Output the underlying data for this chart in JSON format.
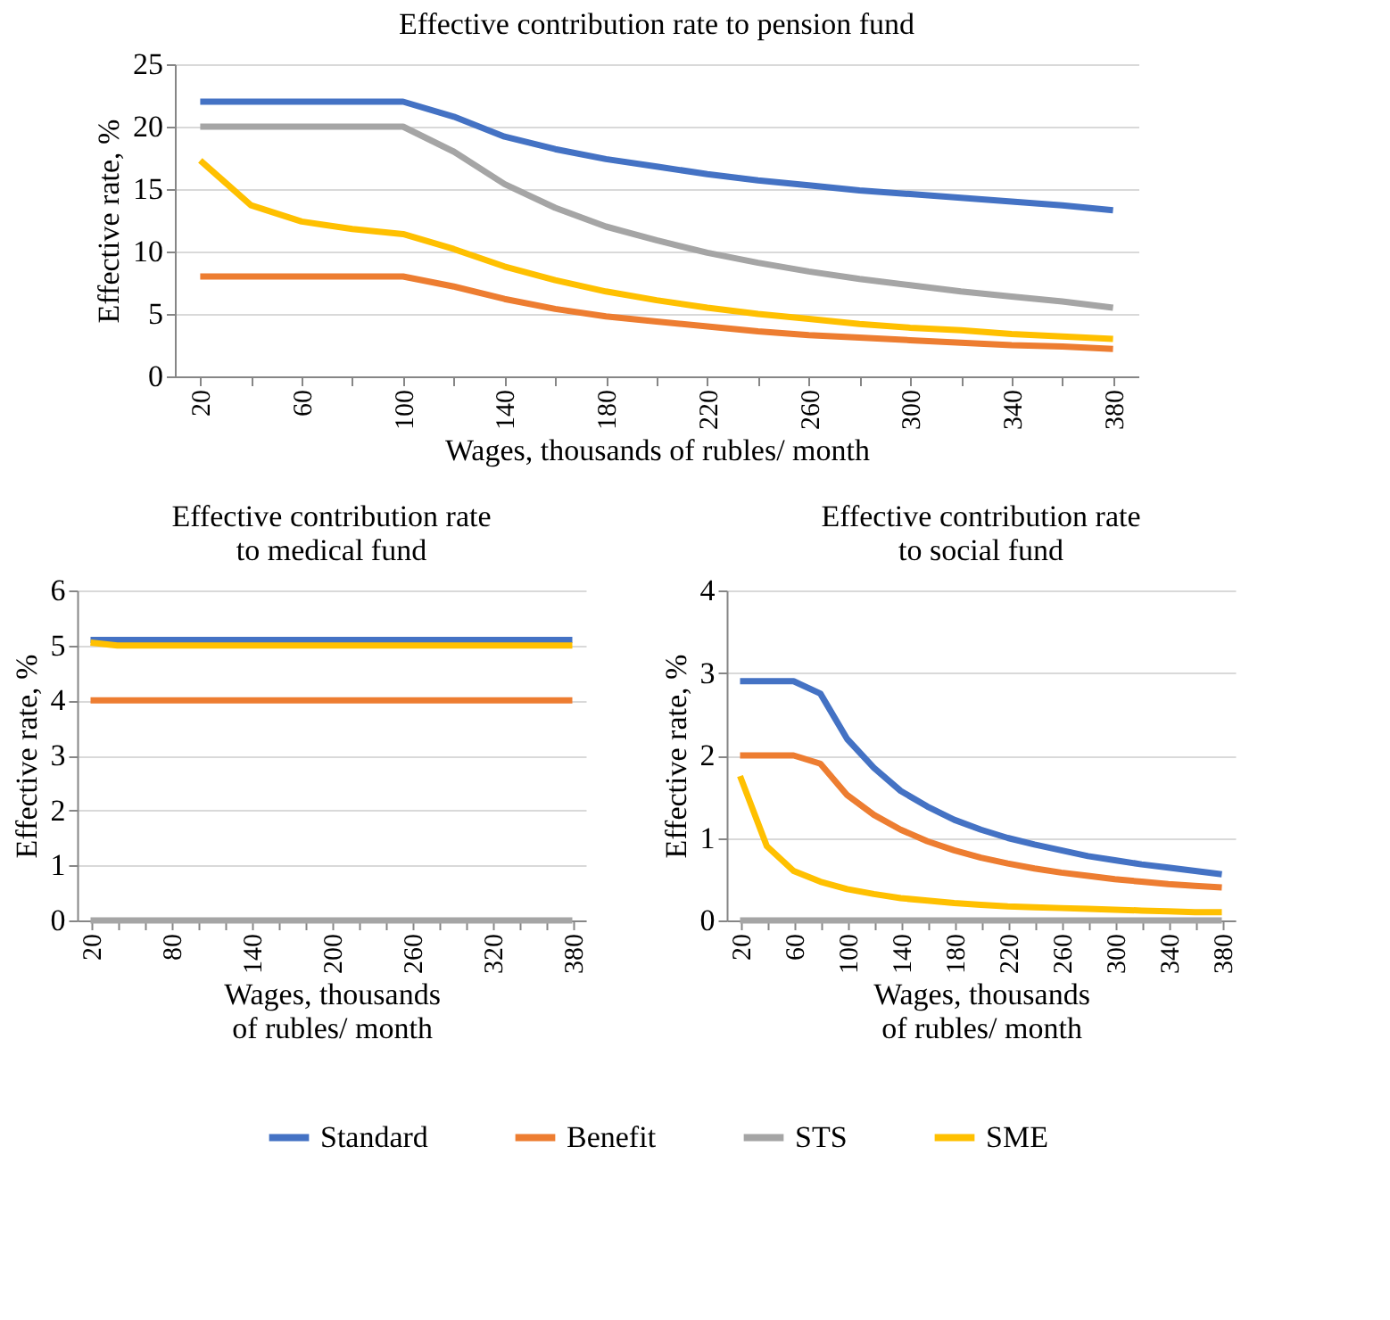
{
  "chart_data": [
    {
      "type": "line",
      "title": "Effective contribution rate to pension fund",
      "xlabel": "Wages, thousands of rubles/ month",
      "ylabel": "Effective rate, %",
      "categories": [
        "20",
        null,
        "60",
        null,
        "100",
        null,
        "140",
        null,
        "180",
        null,
        "220",
        null,
        "260",
        null,
        "300",
        null,
        "340",
        null,
        "380"
      ],
      "ylim": [
        0,
        25
      ],
      "yticks": [
        0,
        5,
        10,
        15,
        20,
        25
      ],
      "grid": "y",
      "legend": "bottom",
      "marker": "none",
      "line_style": "solid",
      "series": [
        {
          "name": "Standard",
          "color": "#4472c4",
          "values": [
            22,
            22,
            22,
            22,
            22,
            20.8,
            19.2,
            18.2,
            17.4,
            16.8,
            16.2,
            15.7,
            15.3,
            14.9,
            14.6,
            14.3,
            14.0,
            13.7,
            13.3
          ]
        },
        {
          "name": "Benefit",
          "color": "#ed7d31",
          "values": [
            8,
            8,
            8,
            8,
            8,
            7.2,
            6.2,
            5.4,
            4.8,
            4.4,
            4.0,
            3.6,
            3.3,
            3.1,
            2.9,
            2.7,
            2.5,
            2.4,
            2.2
          ]
        },
        {
          "name": "STS",
          "color": "#a5a5a5",
          "values": [
            20,
            20,
            20,
            20,
            20,
            18,
            15.4,
            13.5,
            12,
            10.9,
            9.9,
            9.1,
            8.4,
            7.8,
            7.3,
            6.8,
            6.4,
            6.0,
            5.5
          ]
        },
        {
          "name": "SME",
          "color": "#ffc000",
          "values": [
            17.3,
            13.7,
            12.4,
            11.8,
            11.4,
            10.2,
            8.8,
            7.7,
            6.8,
            6.1,
            5.5,
            5.0,
            4.6,
            4.2,
            3.9,
            3.7,
            3.4,
            3.2,
            3.0
          ]
        }
      ]
    },
    {
      "type": "line",
      "title": "Effective contribution rate\nto medical fund",
      "xlabel": "Wages, thousands\nof rubles/ month",
      "ylabel": "Effective rate, %",
      "categories": [
        "20",
        null,
        null,
        "80",
        null,
        null,
        "140",
        null,
        null,
        "200",
        null,
        null,
        "260",
        null,
        null,
        "320",
        null,
        null,
        "380"
      ],
      "ylim": [
        0,
        6
      ],
      "yticks": [
        0,
        1,
        2,
        3,
        4,
        5,
        6
      ],
      "grid": "y",
      "legend": false,
      "marker": "none",
      "line_style": "solid",
      "series": [
        {
          "color": "#4472c4",
          "values": [
            5.1,
            5.1,
            5.1,
            5.1,
            5.1,
            5.1,
            5.1,
            5.1,
            5.1,
            5.1,
            5.1,
            5.1,
            5.1,
            5.1,
            5.1,
            5.1,
            5.1,
            5.1,
            5.1
          ]
        },
        {
          "color": "#ed7d31",
          "values": [
            4,
            4,
            4,
            4,
            4,
            4,
            4,
            4,
            4,
            4,
            4,
            4,
            4,
            4,
            4,
            4,
            4,
            4,
            4
          ]
        },
        {
          "color": "#a5a5a5",
          "values": [
            0,
            0,
            0,
            0,
            0,
            0,
            0,
            0,
            0,
            0,
            0,
            0,
            0,
            0,
            0,
            0,
            0,
            0,
            0
          ]
        },
        {
          "color": "#ffc000",
          "values": [
            5.05,
            5.0,
            5.0,
            5.0,
            5.0,
            5.0,
            5.0,
            5.0,
            5.0,
            5.0,
            5.0,
            5.0,
            5.0,
            5.0,
            5.0,
            5.0,
            5.0,
            5.0,
            5.0
          ]
        }
      ]
    },
    {
      "type": "line",
      "title": "Effective contribution rate\nto social fund",
      "xlabel": "Wages, thousands\nof rubles/ month",
      "ylabel": "Effective rate, %",
      "categories": [
        "20",
        null,
        "60",
        null,
        "100",
        null,
        "140",
        null,
        "180",
        null,
        "220",
        null,
        "260",
        null,
        "300",
        null,
        "340",
        null,
        "380"
      ],
      "ylim": [
        0,
        4
      ],
      "yticks": [
        0,
        1,
        2,
        3,
        4
      ],
      "grid": "y",
      "legend": false,
      "marker": "none",
      "line_style": "solid",
      "series": [
        {
          "color": "#4472c4",
          "values": [
            2.9,
            2.9,
            2.9,
            2.75,
            2.2,
            1.85,
            1.57,
            1.38,
            1.22,
            1.1,
            1.0,
            0.92,
            0.85,
            0.78,
            0.73,
            0.68,
            0.64,
            0.6,
            0.56
          ]
        },
        {
          "color": "#ed7d31",
          "values": [
            2.0,
            2.0,
            2.0,
            1.9,
            1.52,
            1.28,
            1.1,
            0.96,
            0.85,
            0.76,
            0.69,
            0.63,
            0.58,
            0.54,
            0.5,
            0.47,
            0.44,
            0.42,
            0.4
          ]
        },
        {
          "color": "#a5a5a5",
          "values": [
            0,
            0,
            0,
            0,
            0,
            0,
            0,
            0,
            0,
            0,
            0,
            0,
            0,
            0,
            0,
            0,
            0,
            0,
            0
          ]
        },
        {
          "color": "#ffc000",
          "values": [
            1.75,
            0.9,
            0.6,
            0.47,
            0.38,
            0.32,
            0.27,
            0.24,
            0.21,
            0.19,
            0.17,
            0.16,
            0.15,
            0.14,
            0.13,
            0.12,
            0.11,
            0.1,
            0.1
          ]
        }
      ]
    }
  ]
}
